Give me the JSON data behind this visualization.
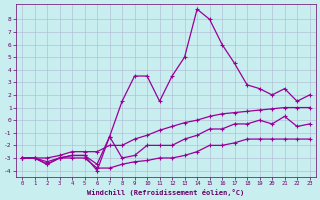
{
  "xlabel": "Windchill (Refroidissement éolien,°C)",
  "background_color": "#c8eef0",
  "grid_color": "#b0b8d0",
  "line_color": "#990099",
  "xlim": [
    -0.5,
    23.5
  ],
  "ylim": [
    -4.5,
    9.2
  ],
  "xticks": [
    0,
    1,
    2,
    3,
    4,
    5,
    6,
    7,
    8,
    9,
    10,
    11,
    12,
    13,
    14,
    15,
    16,
    17,
    18,
    19,
    20,
    21,
    22,
    23
  ],
  "yticks": [
    -4,
    -3,
    -2,
    -1,
    0,
    1,
    2,
    3,
    4,
    5,
    6,
    7,
    8
  ],
  "s1_x": [
    0,
    1,
    2,
    3,
    4,
    5,
    6,
    7,
    8,
    9,
    10,
    11,
    12,
    13,
    14,
    15,
    16,
    17,
    18,
    19,
    20,
    21,
    22,
    23
  ],
  "s1_y": [
    -3,
    -3,
    -3.3,
    -3,
    -3,
    -3,
    -3.8,
    -3.8,
    -3.5,
    -3.3,
    -3.2,
    -3,
    -3,
    -2.8,
    -2.5,
    -2,
    -2,
    -1.8,
    -1.5,
    -1.5,
    -1.5,
    -1.5,
    -1.5,
    -1.5
  ],
  "s2_x": [
    0,
    1,
    2,
    3,
    4,
    5,
    6,
    7,
    8,
    9,
    10,
    11,
    12,
    13,
    14,
    15,
    16,
    17,
    18,
    19,
    20,
    21,
    22,
    23
  ],
  "s2_y": [
    -3,
    -3,
    -3,
    -2.8,
    -2.5,
    -2.5,
    -2.5,
    -2,
    -2,
    -1.5,
    -1.2,
    -0.8,
    -0.5,
    -0.2,
    0,
    0.3,
    0.5,
    0.6,
    0.7,
    0.8,
    0.9,
    1.0,
    1.0,
    1.0
  ],
  "s3_x": [
    0,
    1,
    2,
    3,
    4,
    5,
    6,
    7,
    8,
    9,
    10,
    11,
    12,
    13,
    14,
    15,
    16,
    17,
    18,
    19,
    20,
    21,
    22,
    23
  ],
  "s3_y": [
    -3,
    -3,
    -3.5,
    -3,
    -2.8,
    -2.8,
    -4,
    -1.3,
    -3,
    -2.8,
    -2,
    -2,
    -2,
    -1.5,
    -1.2,
    -0.7,
    -0.7,
    -0.3,
    -0.3,
    0.0,
    -0.3,
    0.3,
    -0.5,
    -0.3
  ],
  "s4_x": [
    0,
    1,
    2,
    3,
    4,
    5,
    6,
    7,
    8,
    9,
    10,
    11,
    12,
    13,
    14,
    15,
    16,
    17,
    18,
    19,
    20,
    21,
    22,
    23
  ],
  "s4_y": [
    -3,
    -3,
    -3.5,
    -3,
    -2.8,
    -2.8,
    -3.5,
    -1.3,
    1.5,
    3.5,
    3.5,
    1.5,
    3.5,
    5.0,
    8.8,
    8.0,
    6.0,
    4.5,
    2.8,
    2.5,
    2.0,
    2.5,
    1.5,
    2.0
  ]
}
